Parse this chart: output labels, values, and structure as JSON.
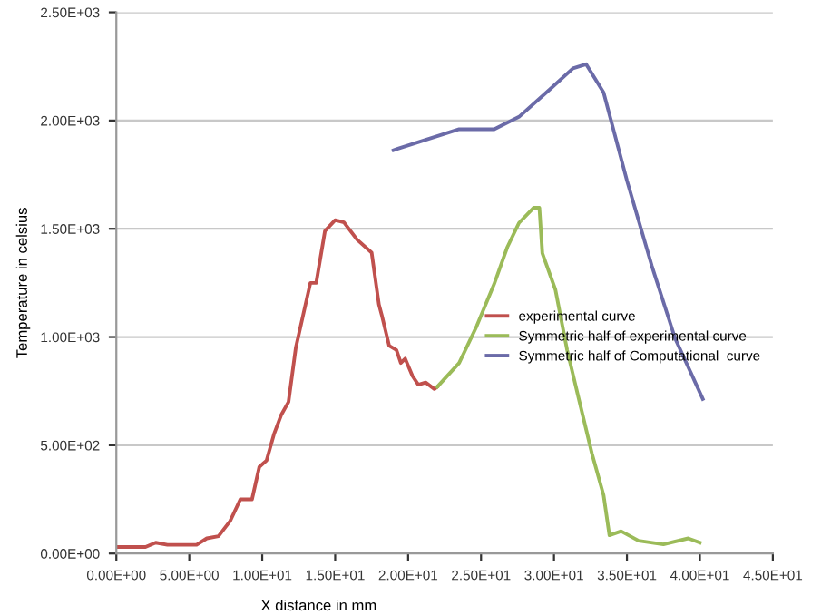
{
  "chart_data": {
    "type": "line",
    "xlabel": "X distance in mm",
    "ylabel": "Temperature in celsius",
    "xlim": [
      0,
      45
    ],
    "ylim": [
      0,
      2500
    ],
    "xticks": [
      {
        "value": 0,
        "label": "0.00E+00"
      },
      {
        "value": 5,
        "label": "5.00E+00"
      },
      {
        "value": 10,
        "label": "1.00E+01"
      },
      {
        "value": 15,
        "label": "1.50E+01"
      },
      {
        "value": 20,
        "label": "2.00E+01"
      },
      {
        "value": 25,
        "label": "2.50E+01"
      },
      {
        "value": 30,
        "label": "3.00E+01"
      },
      {
        "value": 35,
        "label": "3.50E+01"
      },
      {
        "value": 40,
        "label": "4.00E+01"
      },
      {
        "value": 45,
        "label": "4.50E+01"
      }
    ],
    "yticks": [
      {
        "value": 0,
        "label": "0.00E+00"
      },
      {
        "value": 500,
        "label": "5.00E+02"
      },
      {
        "value": 1000,
        "label": "1.00E+03"
      },
      {
        "value": 1500,
        "label": "1.50E+03"
      },
      {
        "value": 2000,
        "label": "2.00E+03"
      },
      {
        "value": 2500,
        "label": "2.50E+03"
      }
    ],
    "grid": "y",
    "legend": "right",
    "marker": "none",
    "line_style": "solid",
    "series": [
      {
        "name": "experimental curve",
        "color": "#c0504d",
        "x": [
          0,
          2,
          2.7,
          3.5,
          5.5,
          6.2,
          7,
          7.8,
          8.5,
          9.3,
          9.8,
          10.3,
          10.8,
          11.3,
          11.8,
          12.3,
          12.8,
          13.3,
          13.7,
          14.3,
          15,
          15.6,
          16.5,
          17.5,
          18,
          18.2,
          18.7,
          19.2,
          19.5,
          19.8,
          20.3,
          20.7,
          21.2,
          21.8,
          22
        ],
        "values": [
          30,
          30,
          50,
          40,
          40,
          70,
          80,
          150,
          250,
          250,
          400,
          430,
          550,
          640,
          700,
          950,
          1100,
          1250,
          1250,
          1490,
          1540,
          1530,
          1450,
          1390,
          1150,
          1100,
          960,
          940,
          880,
          900,
          820,
          780,
          790,
          760,
          770
        ]
      },
      {
        "name": "Symmetric half of experimental curve",
        "color": "#9bbb59",
        "x": [
          22,
          23.5,
          24.7,
          25.9,
          26.8,
          27.6,
          28.6,
          29,
          29.2,
          30.1,
          30.9,
          31.7,
          32.6,
          33.4,
          33.8,
          34.6,
          35.8,
          37.5,
          39.2,
          40
        ],
        "values": [
          770,
          880,
          1050,
          1245,
          1415,
          1527,
          1597,
          1597,
          1387,
          1218,
          940,
          714,
          462,
          269,
          84,
          103,
          59,
          42,
          70,
          50
        ]
      },
      {
        "name": "Symmetric half of Computational  curve",
        "color": "#6b6ba8",
        "x": [
          19,
          19.3,
          23.5,
          25.9,
          27.6,
          29.7,
          31.3,
          32.2,
          33.4,
          35,
          36.7,
          38.3,
          40.2
        ],
        "values": [
          1863,
          1870,
          1960,
          1960,
          2017,
          2143,
          2241,
          2260,
          2129,
          1723,
          1330,
          994,
          714
        ]
      }
    ]
  }
}
